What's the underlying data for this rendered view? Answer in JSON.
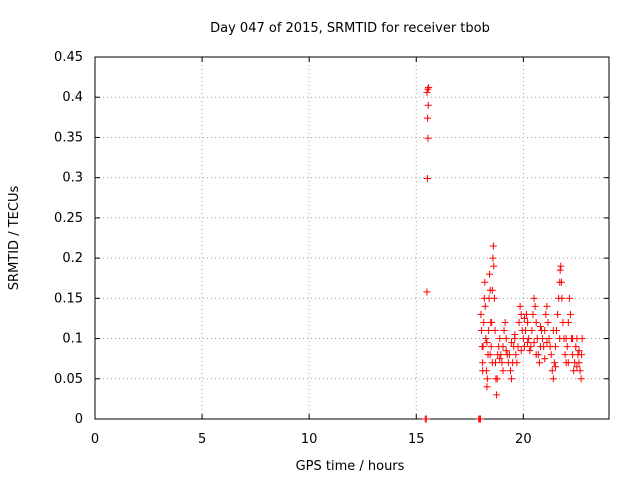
{
  "chart_data": {
    "type": "scatter",
    "title": "Day 047 of 2015, SRMTID for receiver tbob",
    "xlabel": "GPS time / hours",
    "ylabel": "SRMTID / TECUs",
    "xlim": [
      0,
      24
    ],
    "ylim": [
      0,
      0.45
    ],
    "xticks": [
      0,
      5,
      10,
      15,
      20
    ],
    "yticks": [
      0,
      0.05,
      0.1,
      0.15,
      0.2,
      0.25,
      0.3,
      0.35,
      0.4,
      0.45
    ],
    "grid": true,
    "marker": "+",
    "color": "#ff0000",
    "series": [
      {
        "name": "SRMTID",
        "points": [
          [
            15.42,
            0.0
          ],
          [
            15.47,
            0.0
          ],
          [
            15.5,
            0.158
          ],
          [
            15.52,
            0.299
          ],
          [
            15.55,
            0.349
          ],
          [
            15.53,
            0.374
          ],
          [
            15.56,
            0.39
          ],
          [
            15.5,
            0.406
          ],
          [
            15.54,
            0.41
          ],
          [
            15.58,
            0.412
          ],
          [
            17.92,
            0.0
          ],
          [
            17.96,
            0.0
          ],
          [
            18.0,
            0.0
          ],
          [
            18.02,
            0.13
          ],
          [
            18.05,
            0.11
          ],
          [
            18.08,
            0.09
          ],
          [
            18.1,
            0.07
          ],
          [
            18.12,
            0.09
          ],
          [
            18.15,
            0.12
          ],
          [
            18.18,
            0.15
          ],
          [
            18.2,
            0.17
          ],
          [
            18.22,
            0.14
          ],
          [
            18.25,
            0.1
          ],
          [
            18.28,
            0.06
          ],
          [
            18.3,
            0.04
          ],
          [
            18.32,
            0.05
          ],
          [
            18.35,
            0.08
          ],
          [
            18.38,
            0.11
          ],
          [
            18.4,
            0.15
          ],
          [
            18.42,
            0.18
          ],
          [
            18.45,
            0.16
          ],
          [
            18.48,
            0.12
          ],
          [
            18.5,
            0.09
          ],
          [
            18.52,
            0.12
          ],
          [
            18.55,
            0.16
          ],
          [
            18.58,
            0.2
          ],
          [
            18.6,
            0.215
          ],
          [
            18.62,
            0.19
          ],
          [
            18.65,
            0.15
          ],
          [
            18.68,
            0.11
          ],
          [
            18.7,
            0.07
          ],
          [
            18.72,
            0.05
          ],
          [
            18.75,
            0.03
          ],
          [
            18.78,
            0.05
          ],
          [
            18.8,
            0.08
          ],
          [
            18.85,
            0.09
          ],
          [
            18.9,
            0.1
          ],
          [
            18.95,
            0.08
          ],
          [
            19.0,
            0.07
          ],
          [
            19.05,
            0.09
          ],
          [
            19.1,
            0.11
          ],
          [
            19.15,
            0.12
          ],
          [
            19.2,
            0.1
          ],
          [
            19.25,
            0.08
          ],
          [
            19.3,
            0.07
          ],
          [
            19.35,
            0.08
          ],
          [
            19.4,
            0.06
          ],
          [
            19.45,
            0.05
          ],
          [
            19.5,
            0.07
          ],
          [
            19.55,
            0.09
          ],
          [
            19.6,
            0.1
          ],
          [
            19.65,
            0.08
          ],
          [
            19.7,
            0.07
          ],
          [
            19.75,
            0.09
          ],
          [
            19.8,
            0.12
          ],
          [
            19.85,
            0.14
          ],
          [
            19.9,
            0.13
          ],
          [
            19.95,
            0.11
          ],
          [
            20.0,
            0.1
          ],
          [
            20.05,
            0.09
          ],
          [
            20.1,
            0.11
          ],
          [
            20.15,
            0.13
          ],
          [
            20.2,
            0.12
          ],
          [
            20.25,
            0.1
          ],
          [
            20.3,
            0.085
          ],
          [
            20.35,
            0.09
          ],
          [
            20.4,
            0.11
          ],
          [
            20.45,
            0.13
          ],
          [
            20.5,
            0.15
          ],
          [
            20.55,
            0.14
          ],
          [
            20.6,
            0.12
          ],
          [
            20.65,
            0.1
          ],
          [
            20.7,
            0.08
          ],
          [
            20.75,
            0.07
          ],
          [
            20.8,
            0.09
          ],
          [
            20.85,
            0.11
          ],
          [
            20.9,
            0.1
          ],
          [
            20.95,
            0.09
          ],
          [
            21.0,
            0.11
          ],
          [
            21.05,
            0.13
          ],
          [
            21.1,
            0.14
          ],
          [
            21.15,
            0.12
          ],
          [
            21.2,
            0.1
          ],
          [
            21.25,
            0.09
          ],
          [
            21.3,
            0.08
          ],
          [
            21.35,
            0.06
          ],
          [
            21.4,
            0.05
          ],
          [
            21.45,
            0.07
          ],
          [
            21.5,
            0.09
          ],
          [
            21.55,
            0.11
          ],
          [
            21.6,
            0.13
          ],
          [
            21.65,
            0.15
          ],
          [
            21.7,
            0.17
          ],
          [
            21.72,
            0.185
          ],
          [
            21.75,
            0.19
          ],
          [
            21.78,
            0.17
          ],
          [
            21.8,
            0.15
          ],
          [
            21.85,
            0.12
          ],
          [
            21.9,
            0.1
          ],
          [
            21.95,
            0.08
          ],
          [
            22.0,
            0.07
          ],
          [
            22.05,
            0.09
          ],
          [
            22.1,
            0.12
          ],
          [
            22.15,
            0.15
          ],
          [
            22.2,
            0.13
          ],
          [
            22.25,
            0.1
          ],
          [
            22.3,
            0.08
          ],
          [
            22.35,
            0.06
          ],
          [
            22.4,
            0.07
          ],
          [
            22.45,
            0.09
          ],
          [
            22.5,
            0.1
          ],
          [
            22.55,
            0.08
          ],
          [
            22.6,
            0.07
          ],
          [
            22.65,
            0.06
          ],
          [
            22.7,
            0.05
          ],
          [
            22.72,
            0.08
          ],
          [
            22.75,
            0.1
          ],
          [
            18.1,
            0.06
          ],
          [
            18.3,
            0.095
          ],
          [
            18.55,
            0.07
          ],
          [
            18.9,
            0.075
          ],
          [
            19.2,
            0.085
          ],
          [
            19.6,
            0.105
          ],
          [
            19.9,
            0.085
          ],
          [
            20.2,
            0.095
          ],
          [
            20.5,
            0.095
          ],
          [
            20.8,
            0.115
          ],
          [
            21.1,
            0.095
          ],
          [
            21.4,
            0.11
          ],
          [
            21.7,
            0.1
          ],
          [
            22.0,
            0.1
          ],
          [
            22.3,
            0.1
          ],
          [
            22.6,
            0.085
          ],
          [
            18.45,
            0.08
          ],
          [
            19.05,
            0.06
          ],
          [
            19.45,
            0.095
          ],
          [
            20.05,
            0.125
          ],
          [
            20.6,
            0.08
          ],
          [
            21.0,
            0.075
          ],
          [
            21.5,
            0.065
          ],
          [
            22.1,
            0.07
          ],
          [
            22.5,
            0.065
          ]
        ]
      }
    ]
  }
}
